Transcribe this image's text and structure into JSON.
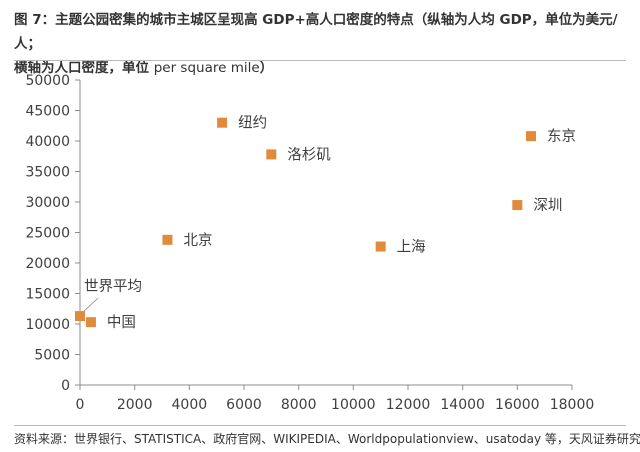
{
  "header": {
    "title_line1": "图 7：主题公园密集的城市主城区呈现高 GDP+高人口密度的特点（纵轴为人均 GDP，单位为美元/人；",
    "title_line2_a": "横轴为人口密度，单位 ",
    "title_line2_b": "per square mile",
    "title_line2_c": "）"
  },
  "footer": {
    "source": "资料来源：世界银行、STATISTICA、政府官网、WIKIPEDIA、Worldpopulationview、usatoday 等，天风证券研究所"
  },
  "chart_data": {
    "type": "scatter",
    "title": "",
    "xlabel": "",
    "ylabel": "",
    "xlim": [
      0,
      18000
    ],
    "ylim": [
      0,
      50000
    ],
    "x_ticks": [
      0,
      2000,
      4000,
      6000,
      8000,
      10000,
      12000,
      14000,
      16000,
      18000
    ],
    "y_ticks": [
      0,
      5000,
      10000,
      15000,
      20000,
      25000,
      30000,
      35000,
      40000,
      45000,
      50000
    ],
    "grid": false,
    "marker_color": "#E08A3C",
    "points": [
      {
        "label": "世界平均",
        "x": 0,
        "y": 11300,
        "label_pos": "above-right",
        "leader_line": true
      },
      {
        "label": "中国",
        "x": 400,
        "y": 10300,
        "label_pos": "right"
      },
      {
        "label": "北京",
        "x": 3200,
        "y": 23800,
        "label_pos": "right"
      },
      {
        "label": "纽约",
        "x": 5200,
        "y": 43000,
        "label_pos": "right"
      },
      {
        "label": "洛杉矶",
        "x": 7000,
        "y": 37800,
        "label_pos": "right"
      },
      {
        "label": "上海",
        "x": 11000,
        "y": 22700,
        "label_pos": "right"
      },
      {
        "label": "深圳",
        "x": 16000,
        "y": 29500,
        "label_pos": "right"
      },
      {
        "label": "东京",
        "x": 16500,
        "y": 40800,
        "label_pos": "right"
      }
    ]
  }
}
